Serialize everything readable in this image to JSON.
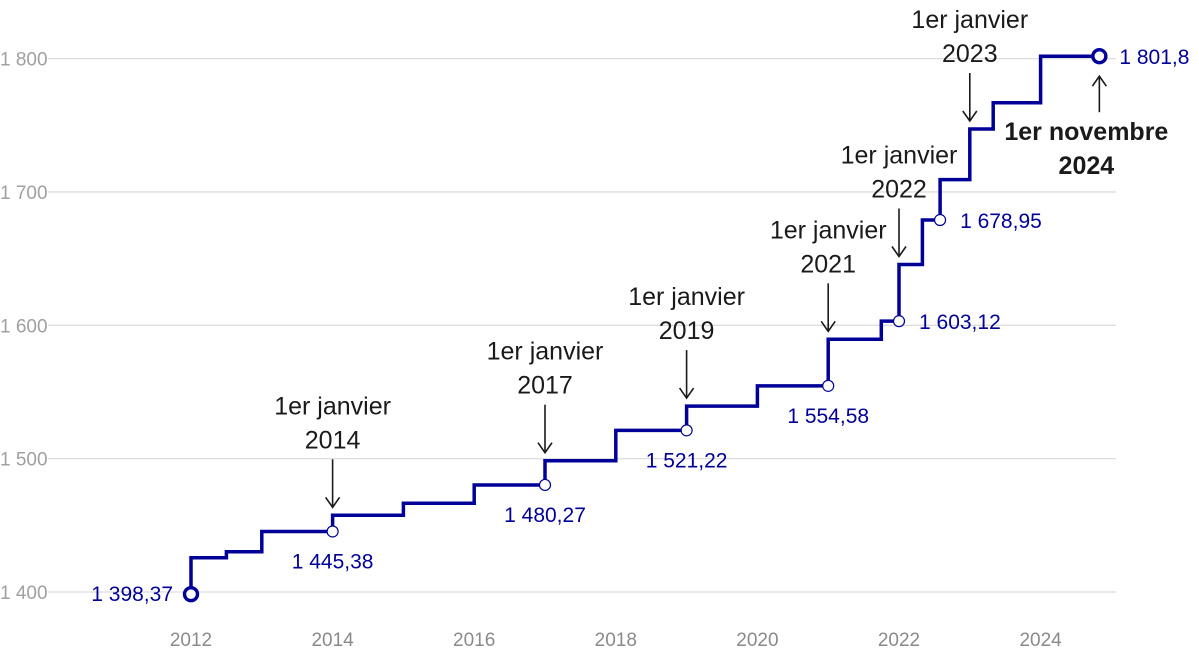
{
  "chart_data": {
    "type": "line",
    "title": "",
    "xlabel": "",
    "ylabel": "",
    "xlim": [
      2011.5,
      2025.4
    ],
    "ylim": [
      1383,
      1825
    ],
    "x_ticks": [
      "2012",
      "2014",
      "2016",
      "2018",
      "2020",
      "2022",
      "2024"
    ],
    "y_ticks": [
      "1 400",
      "1 500",
      "1 600",
      "1 700",
      "1 800"
    ],
    "grid": true,
    "legend": "none",
    "colors": {
      "line": "#000099",
      "annotation": "#1a1a1a",
      "grid": "#dddddd"
    },
    "series": [
      {
        "step_points": [
          [
            2012.0,
            1398.37
          ],
          [
            2012.0,
            1425.7
          ],
          [
            2012.5,
            1430.2
          ],
          [
            2013.0,
            1445.38
          ],
          [
            2014.0,
            1457.52
          ],
          [
            2015.0,
            1466.62
          ],
          [
            2016.0,
            1480.27
          ],
          [
            2017.0,
            1498.47
          ],
          [
            2018.0,
            1521.22
          ],
          [
            2019.0,
            1539.42
          ],
          [
            2020.0,
            1554.58
          ],
          [
            2021.0,
            1589.47
          ],
          [
            2021.75,
            1603.12
          ],
          [
            2022.0,
            1645.58
          ],
          [
            2022.33,
            1678.95
          ],
          [
            2022.58,
            1709.28
          ],
          [
            2023.0,
            1747.2
          ],
          [
            2023.33,
            1766.92
          ],
          [
            2024.0,
            1801.8
          ],
          [
            2024.83,
            1801.8
          ]
        ]
      }
    ],
    "value_labels": [
      {
        "x": 2012.0,
        "y": 1398.37,
        "label": "1 398,37",
        "side": "left",
        "marker": "end"
      },
      {
        "x": 2014.0,
        "y": 1445.38,
        "label": "1 445,38",
        "side": "below",
        "marker": "hollow"
      },
      {
        "x": 2017.0,
        "y": 1480.27,
        "label": "1 480,27",
        "side": "below",
        "marker": "hollow"
      },
      {
        "x": 2019.0,
        "y": 1521.22,
        "label": "1 521,22",
        "side": "below",
        "marker": "hollow"
      },
      {
        "x": 2021.0,
        "y": 1554.58,
        "label": "1 554,58",
        "side": "below",
        "marker": "hollow"
      },
      {
        "x": 2022.0,
        "y": 1603.12,
        "label": "1 603,12",
        "side": "right",
        "marker": "hollow"
      },
      {
        "x": 2022.58,
        "y": 1678.95,
        "label": "1 678,95",
        "side": "right",
        "marker": "hollow"
      },
      {
        "x": 2024.83,
        "y": 1801.8,
        "label": "1 801,8",
        "side": "right",
        "marker": "end"
      }
    ],
    "annotations": [
      {
        "lines": [
          "1er janvier",
          "2014"
        ],
        "x": 2014.0,
        "y": 1457.52,
        "bold": false,
        "arrow": "down"
      },
      {
        "lines": [
          "1er janvier",
          "2017"
        ],
        "x": 2017.0,
        "y": 1498.47,
        "bold": false,
        "arrow": "down"
      },
      {
        "lines": [
          "1er janvier",
          "2019"
        ],
        "x": 2019.0,
        "y": 1539.42,
        "bold": false,
        "arrow": "down"
      },
      {
        "lines": [
          "1er janvier",
          "2021"
        ],
        "x": 2021.0,
        "y": 1589.47,
        "bold": false,
        "arrow": "down"
      },
      {
        "lines": [
          "1er janvier",
          "2022"
        ],
        "x": 2022.0,
        "y": 1645.58,
        "bold": false,
        "arrow": "down"
      },
      {
        "lines": [
          "1er janvier",
          "2023"
        ],
        "x": 2023.0,
        "y": 1747.2,
        "bold": false,
        "arrow": "down"
      },
      {
        "lines": [
          "1er novembre",
          "2024"
        ],
        "x": 2024.83,
        "y": 1801.8,
        "bold": true,
        "arrow": "up"
      }
    ]
  }
}
